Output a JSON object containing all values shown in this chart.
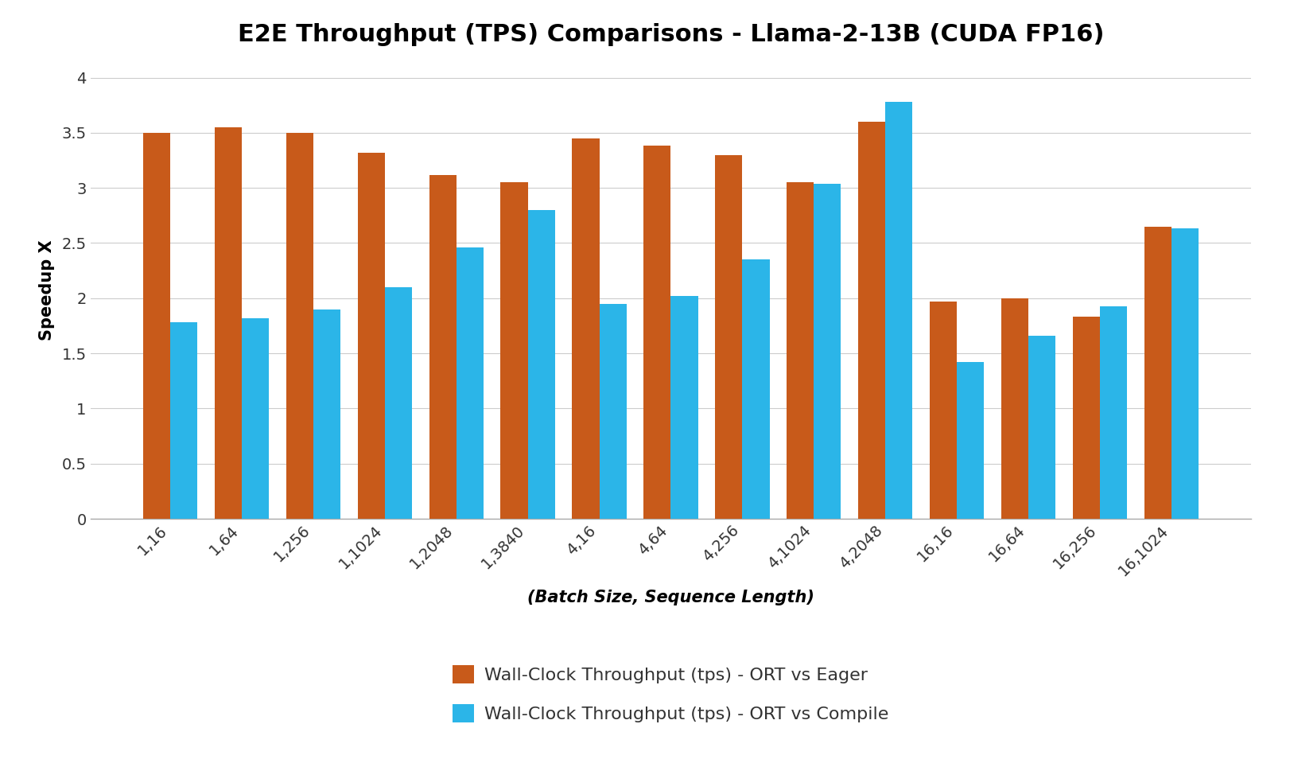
{
  "title": "E2E Throughput (TPS) Comparisons - Llama-2-13B (CUDA FP16)",
  "xlabel": "(Batch Size, Sequence Length)",
  "ylabel": "Speedup X",
  "categories": [
    "1,16",
    "1,64",
    "1,256",
    "1,1024",
    "1,2048",
    "1,3840",
    "4,16",
    "4,64",
    "4,256",
    "4,1024",
    "4,2048",
    "16,16",
    "16,64",
    "16,256",
    "16,1024"
  ],
  "ort_vs_eager": [
    3.5,
    3.55,
    3.5,
    3.32,
    3.12,
    3.05,
    3.45,
    3.38,
    3.3,
    3.05,
    3.6,
    1.97,
    2.0,
    1.83,
    2.65
  ],
  "ort_vs_compile": [
    1.78,
    1.82,
    1.9,
    2.1,
    2.46,
    2.8,
    1.95,
    2.02,
    2.35,
    3.04,
    3.78,
    1.42,
    1.66,
    1.93,
    2.63
  ],
  "color_eager": "#C85A1A",
  "color_compile": "#2BB5E8",
  "ylim": [
    0,
    4.15
  ],
  "yticks": [
    0,
    0.5,
    1.0,
    1.5,
    2.0,
    2.5,
    3.0,
    3.5,
    4.0
  ],
  "ytick_labels": [
    "0",
    "0.5",
    "1",
    "1.5",
    "2",
    "2.5",
    "3",
    "3.5",
    "4"
  ],
  "legend_eager": "Wall-Clock Throughput (tps) - ORT vs Eager",
  "legend_compile": "Wall-Clock Throughput (tps) - ORT vs Compile",
  "background_color": "#ffffff",
  "title_fontsize": 22,
  "axis_label_fontsize": 15,
  "tick_fontsize": 14,
  "legend_fontsize": 16
}
